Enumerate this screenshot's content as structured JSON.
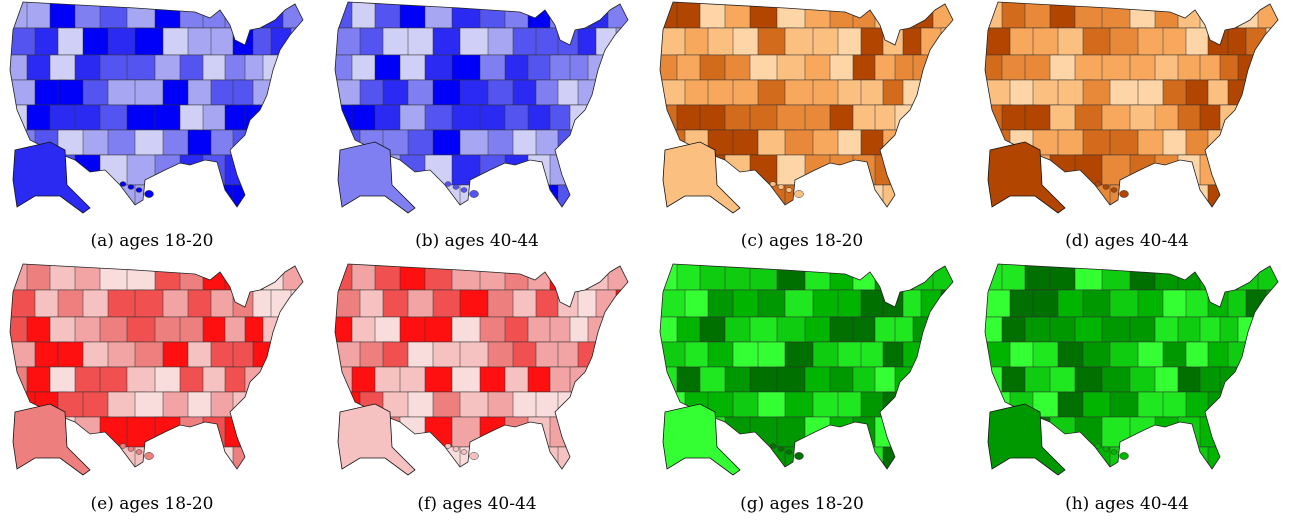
{
  "panels": [
    {
      "caption": "(a) ages 18-20"
    },
    {
      "caption": "(b) ages 40-44"
    },
    {
      "caption": "(c) ages 18-20"
    },
    {
      "caption": "(d) ages 40-44"
    },
    {
      "caption": "(e) ages 18-20"
    },
    {
      "caption": "(f) ages 40-44"
    },
    {
      "caption": "(g) ages 18-20"
    },
    {
      "caption": "(h) ages 40-44"
    }
  ]
}
